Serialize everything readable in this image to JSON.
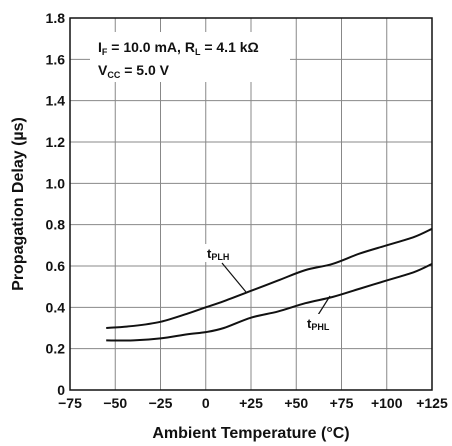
{
  "chart_data": {
    "type": "line",
    "xlabel": "Ambient Temperature (°C)",
    "ylabel": "Propagation Delay (µs)",
    "xlim": [
      -75,
      125
    ],
    "ylim": [
      0,
      1.8
    ],
    "grid": true,
    "x_ticks": [
      -75,
      -50,
      -25,
      0,
      25,
      50,
      75,
      100,
      125
    ],
    "x_tick_labels": [
      "−75",
      "−50",
      "−25",
      "0",
      "+25",
      "+50",
      "+75",
      "+100",
      "+125"
    ],
    "y_ticks": [
      0,
      0.2,
      0.4,
      0.6,
      0.8,
      1.0,
      1.2,
      1.4,
      1.6,
      1.8
    ],
    "y_tick_labels": [
      "0",
      "0.2",
      "0.4",
      "0.6",
      "0.8",
      "1.0",
      "1.2",
      "1.4",
      "1.6",
      "1.8"
    ],
    "conditions": {
      "line1": {
        "p1": "I",
        "s1": "F",
        "p2": " = 10.0 mA, R",
        "s2": "L",
        "p3": " = 4.1 kΩ"
      },
      "line2": {
        "p1": "V",
        "s1": "CC",
        "p2": " = 5.0 V"
      }
    },
    "series": [
      {
        "name": "tPLH",
        "label_main": "t",
        "label_sub": "PLH",
        "x": [
          -55,
          -40,
          -25,
          -10,
          0,
          10,
          25,
          40,
          55,
          70,
          85,
          100,
          115,
          125
        ],
        "y": [
          0.3,
          0.31,
          0.33,
          0.37,
          0.4,
          0.43,
          0.48,
          0.53,
          0.58,
          0.61,
          0.66,
          0.7,
          0.74,
          0.78
        ]
      },
      {
        "name": "tPHL",
        "label_main": "t",
        "label_sub": "PHL",
        "x": [
          -55,
          -40,
          -25,
          -10,
          0,
          10,
          25,
          40,
          55,
          70,
          85,
          100,
          115,
          125
        ],
        "y": [
          0.24,
          0.24,
          0.25,
          0.27,
          0.28,
          0.3,
          0.35,
          0.38,
          0.42,
          0.45,
          0.49,
          0.53,
          0.57,
          0.61
        ]
      }
    ]
  }
}
